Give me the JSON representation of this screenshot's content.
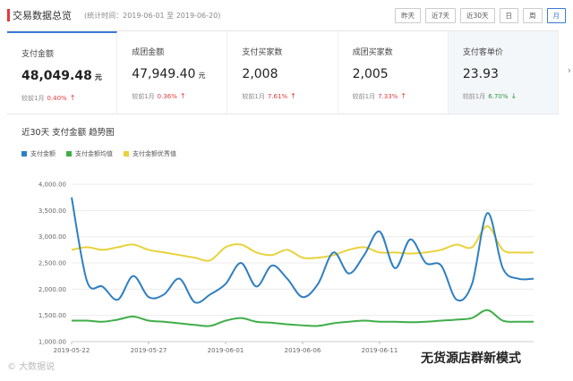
{
  "header": {
    "title": "交易数据总览",
    "subtitle": "(统计时间：2019-06-01 至 2019-06-20)",
    "range_buttons": [
      {
        "label": "昨天"
      },
      {
        "label": "近7天"
      },
      {
        "label": "近30天"
      },
      {
        "label": "日"
      },
      {
        "label": "周"
      },
      {
        "label": "月"
      }
    ]
  },
  "kpis": [
    {
      "label": "支付金额",
      "value": "48,049.48",
      "unit": "元",
      "compare_label": "较前1月",
      "change": "0.40%",
      "trend": "↑"
    },
    {
      "label": "成团金额",
      "value": "47,949.40",
      "unit": "元",
      "compare_label": "较前1月",
      "change": "0.36%",
      "trend": "↑"
    },
    {
      "label": "支付买家数",
      "value": "2,008",
      "unit": "",
      "compare_label": "较前1月",
      "change": "7.61%",
      "trend": "↑"
    },
    {
      "label": "成团买家数",
      "value": "2,005",
      "unit": "",
      "compare_label": "较前1月",
      "change": "7.33%",
      "trend": "↑"
    },
    {
      "label": "支付客单价",
      "value": "23.93",
      "unit": "",
      "compare_label": "较前1月",
      "change": "6.70%",
      "trend": "↓"
    }
  ],
  "next_arrow": "›",
  "chart_title": "近30天 支付金额 趋势图",
  "watermark_left": "© 大数据说",
  "watermark_right": "无货源店群新模式",
  "colors": {
    "blue": "#2f7fc1",
    "green": "#3fae49",
    "yellow": "#e8d23b"
  },
  "chart_data": {
    "type": "line",
    "x_ticks": [
      "2019-05-22",
      "2019-05-27",
      "2019-06-01",
      "2019-06-06",
      "2019-06-11"
    ],
    "y_ticks": [
      "1,000.00",
      "1,500.00",
      "2,000.00",
      "2,500.00",
      "3,000.00",
      "3,500.00",
      "4,000.00"
    ],
    "ylim": [
      1000,
      4000
    ],
    "n_points": 31,
    "series": [
      {
        "name": "支付金额",
        "color": "#2f7fc1",
        "values": [
          3750,
          2150,
          2050,
          1800,
          2250,
          1850,
          1900,
          2200,
          1750,
          1900,
          2100,
          2500,
          2050,
          2450,
          2200,
          1850,
          2100,
          2700,
          2300,
          2650,
          3100,
          2400,
          2950,
          2500,
          2450,
          1800,
          2100,
          3450,
          2400,
          2200,
          2200
        ]
      },
      {
        "name": "支付金额均值",
        "color": "#3fae49",
        "values": [
          1400,
          1400,
          1380,
          1420,
          1480,
          1400,
          1380,
          1350,
          1320,
          1300,
          1400,
          1450,
          1380,
          1360,
          1330,
          1310,
          1300,
          1350,
          1380,
          1400,
          1380,
          1380,
          1370,
          1380,
          1400,
          1420,
          1450,
          1600,
          1400,
          1380,
          1380
        ]
      },
      {
        "name": "支付金额优秀值",
        "color": "#e8d23b",
        "values": [
          2750,
          2800,
          2750,
          2800,
          2850,
          2750,
          2700,
          2650,
          2600,
          2550,
          2800,
          2850,
          2700,
          2650,
          2750,
          2600,
          2600,
          2650,
          2750,
          2800,
          2700,
          2700,
          2680,
          2700,
          2750,
          2850,
          2800,
          3200,
          2750,
          2700,
          2700
        ]
      }
    ]
  }
}
